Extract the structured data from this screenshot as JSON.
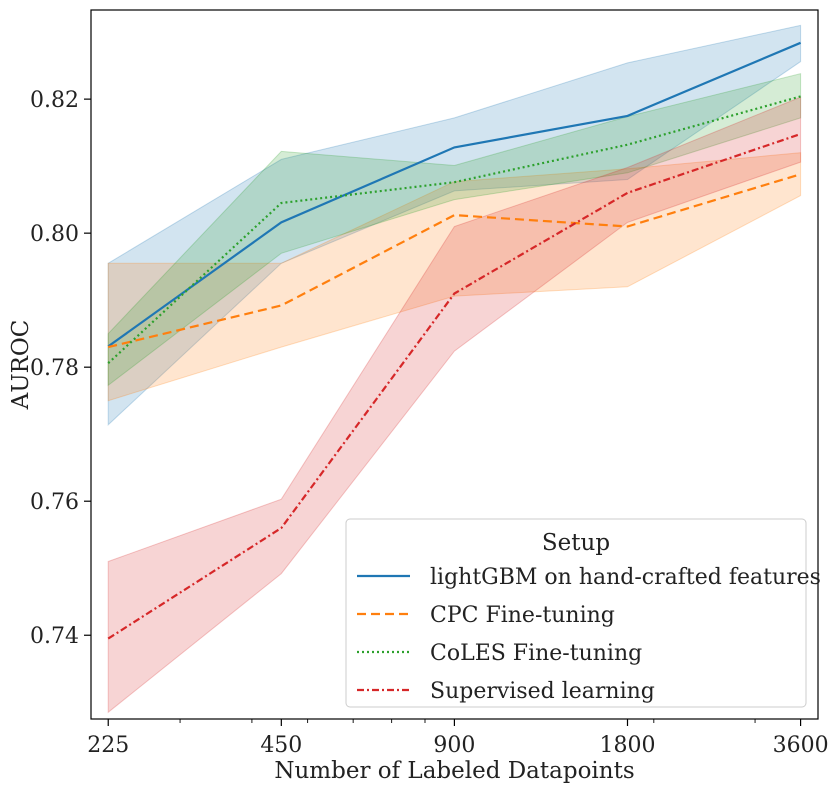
{
  "chart_data": {
    "type": "line",
    "xlabel": "Number of Labeled Datapoints",
    "ylabel": "AUROC",
    "xscale": "log",
    "x": [
      225,
      450,
      900,
      1800,
      3600
    ],
    "xticklabels": [
      "225",
      "450",
      "900",
      "1800",
      "3600"
    ],
    "xlim": [
      210,
      3860
    ],
    "ylim": [
      0.7275,
      0.8333
    ],
    "yticks": [
      0.74,
      0.76,
      0.78,
      0.8,
      0.82
    ],
    "yticklabels": [
      "0.74",
      "0.76",
      "0.78",
      "0.80",
      "0.82"
    ],
    "grid": false,
    "legend": {
      "title": "Setup",
      "position": "lower-right"
    },
    "series": [
      {
        "name": "lightGBM on hand-crafted features",
        "color": "#1f77b4",
        "style": "solid",
        "values": [
          0.7831,
          0.8016,
          0.8128,
          0.8175,
          0.8284
        ],
        "lower": [
          0.7714,
          0.7955,
          0.8063,
          0.808,
          0.8256
        ],
        "upper": [
          0.7955,
          0.811,
          0.8172,
          0.8254,
          0.831
        ]
      },
      {
        "name": "CPC Fine-tuning",
        "color": "#ff7f0e",
        "style": "dashed",
        "values": [
          0.783,
          0.7892,
          0.8027,
          0.801,
          0.8088
        ],
        "lower": [
          0.775,
          0.783,
          0.7906,
          0.792,
          0.8056
        ],
        "upper": [
          0.7955,
          0.7955,
          0.8077,
          0.8096,
          0.812
        ]
      },
      {
        "name": "CoLES Fine-tuning",
        "color": "#2ca02c",
        "style": "dotted",
        "values": [
          0.7806,
          0.8045,
          0.8076,
          0.8132,
          0.8204
        ],
        "lower": [
          0.7773,
          0.797,
          0.805,
          0.809,
          0.8172
        ],
        "upper": [
          0.785,
          0.8122,
          0.8101,
          0.8174,
          0.8238
        ]
      },
      {
        "name": "Supervised learning",
        "color": "#d62728",
        "style": "dashdot",
        "values": [
          0.7395,
          0.756,
          0.791,
          0.806,
          0.8148
        ],
        "lower": [
          0.7285,
          0.7492,
          0.7824,
          0.8016,
          0.8106
        ],
        "upper": [
          0.751,
          0.7603,
          0.801,
          0.8098,
          0.8203
        ]
      }
    ]
  }
}
